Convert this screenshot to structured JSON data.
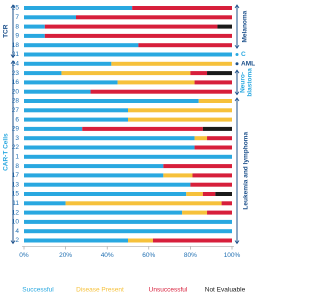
{
  "chart_data": {
    "type": "stacked-barh",
    "categories": [
      "25",
      "7",
      "8",
      "9",
      "18",
      "21",
      "24",
      "23",
      "16",
      "20",
      "28",
      "27",
      "6",
      "29",
      "3",
      "22",
      "1",
      "8",
      "17",
      "13",
      "15",
      "11",
      "12",
      "10",
      "4",
      "2"
    ],
    "series": [
      {
        "name": "Successful",
        "color": "#29a8e0",
        "values": [
          52,
          25,
          10,
          10,
          55,
          100,
          42,
          18,
          45,
          32,
          84,
          50,
          50,
          28,
          82,
          82,
          100,
          67,
          67,
          80,
          78,
          20,
          76,
          100,
          100,
          50
        ]
      },
      {
        "name": "Disease Present",
        "color": "#f6c13b",
        "values": [
          0,
          0,
          0,
          0,
          0,
          0,
          58,
          62,
          37,
          0,
          16,
          50,
          50,
          0,
          6,
          0,
          0,
          0,
          14,
          0,
          8,
          75,
          12,
          0,
          0,
          12
        ]
      },
      {
        "name": "Unsuccessful",
        "color": "#d71f3b",
        "values": [
          48,
          75,
          83,
          90,
          45,
          0,
          0,
          8,
          18,
          68,
          0,
          0,
          0,
          58,
          12,
          18,
          0,
          33,
          19,
          20,
          6,
          5,
          12,
          0,
          0,
          38
        ]
      },
      {
        "name": "Not Evaluable",
        "color": "#1a1a1a",
        "values": [
          0,
          0,
          7,
          0,
          0,
          0,
          0,
          12,
          0,
          0,
          0,
          0,
          0,
          14,
          0,
          0,
          0,
          0,
          0,
          0,
          8,
          0,
          0,
          0,
          0,
          0
        ]
      }
    ],
    "xlim": [
      0,
      100
    ],
    "xticks": [
      {
        "value": 0,
        "label": "0%"
      },
      {
        "value": 20,
        "label": "20%"
      },
      {
        "value": 40,
        "label": "40%"
      },
      {
        "value": 60,
        "label": "60%"
      },
      {
        "value": 80,
        "label": "80%"
      },
      {
        "value": 100,
        "label": "100%"
      }
    ],
    "group_labels_left": [
      "TCR",
      "CAR-T Cells"
    ],
    "group_labels_right": [
      "Melanoma",
      "C",
      "AML",
      "Neuro-",
      "blastoma",
      "Leukemia and lymphoma"
    ]
  }
}
